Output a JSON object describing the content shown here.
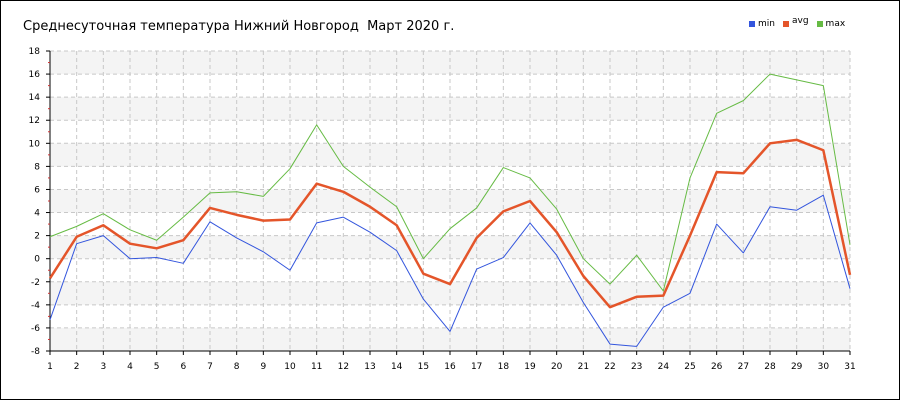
{
  "chart_data": {
    "type": "line",
    "title": "Среднесуточная температура Нижний Новгород  Март 2020 г.",
    "xlabel": "",
    "ylabel": "",
    "x": [
      1,
      2,
      3,
      4,
      5,
      6,
      7,
      8,
      9,
      10,
      11,
      12,
      13,
      14,
      15,
      16,
      17,
      18,
      19,
      20,
      21,
      22,
      23,
      24,
      25,
      26,
      27,
      28,
      29,
      30,
      31
    ],
    "xlim": [
      1,
      31
    ],
    "ylim": [
      -8,
      18
    ],
    "yticks": [
      -8,
      -6,
      -4,
      -2,
      0,
      2,
      4,
      6,
      8,
      10,
      12,
      14,
      16,
      18
    ],
    "grid": true,
    "legend_position": "top-right",
    "series": [
      {
        "name": "min",
        "color": "#3355dd",
        "values": [
          -5.3,
          1.3,
          2.0,
          0.0,
          0.1,
          -0.4,
          3.2,
          1.8,
          0.6,
          -1.0,
          3.1,
          3.6,
          2.3,
          0.7,
          -3.5,
          -6.3,
          -0.9,
          0.1,
          3.1,
          0.3,
          -3.8,
          -7.4,
          -7.6,
          -4.2,
          -3.0,
          3.0,
          0.5,
          4.5,
          4.2,
          5.5,
          -2.6
        ]
      },
      {
        "name": "avg",
        "color": "#e4552a",
        "values": [
          -1.7,
          1.9,
          2.9,
          1.3,
          0.9,
          1.6,
          4.4,
          3.8,
          3.3,
          3.4,
          6.5,
          5.8,
          4.5,
          2.9,
          -1.3,
          -2.2,
          1.8,
          4.1,
          5.0,
          2.3,
          -1.5,
          -4.2,
          -3.3,
          -3.2,
          2.0,
          7.5,
          7.4,
          10.0,
          10.3,
          9.4,
          -1.4
        ]
      },
      {
        "name": "max",
        "color": "#66bb44",
        "values": [
          1.9,
          2.8,
          3.9,
          2.5,
          1.6,
          3.6,
          5.7,
          5.8,
          5.4,
          7.8,
          11.6,
          8.0,
          6.2,
          4.5,
          0.0,
          2.6,
          4.4,
          7.9,
          7.0,
          4.3,
          0.0,
          -2.2,
          0.3,
          -2.8,
          7.0,
          12.6,
          13.7,
          16.0,
          15.5,
          15.0,
          1.2
        ]
      }
    ]
  }
}
